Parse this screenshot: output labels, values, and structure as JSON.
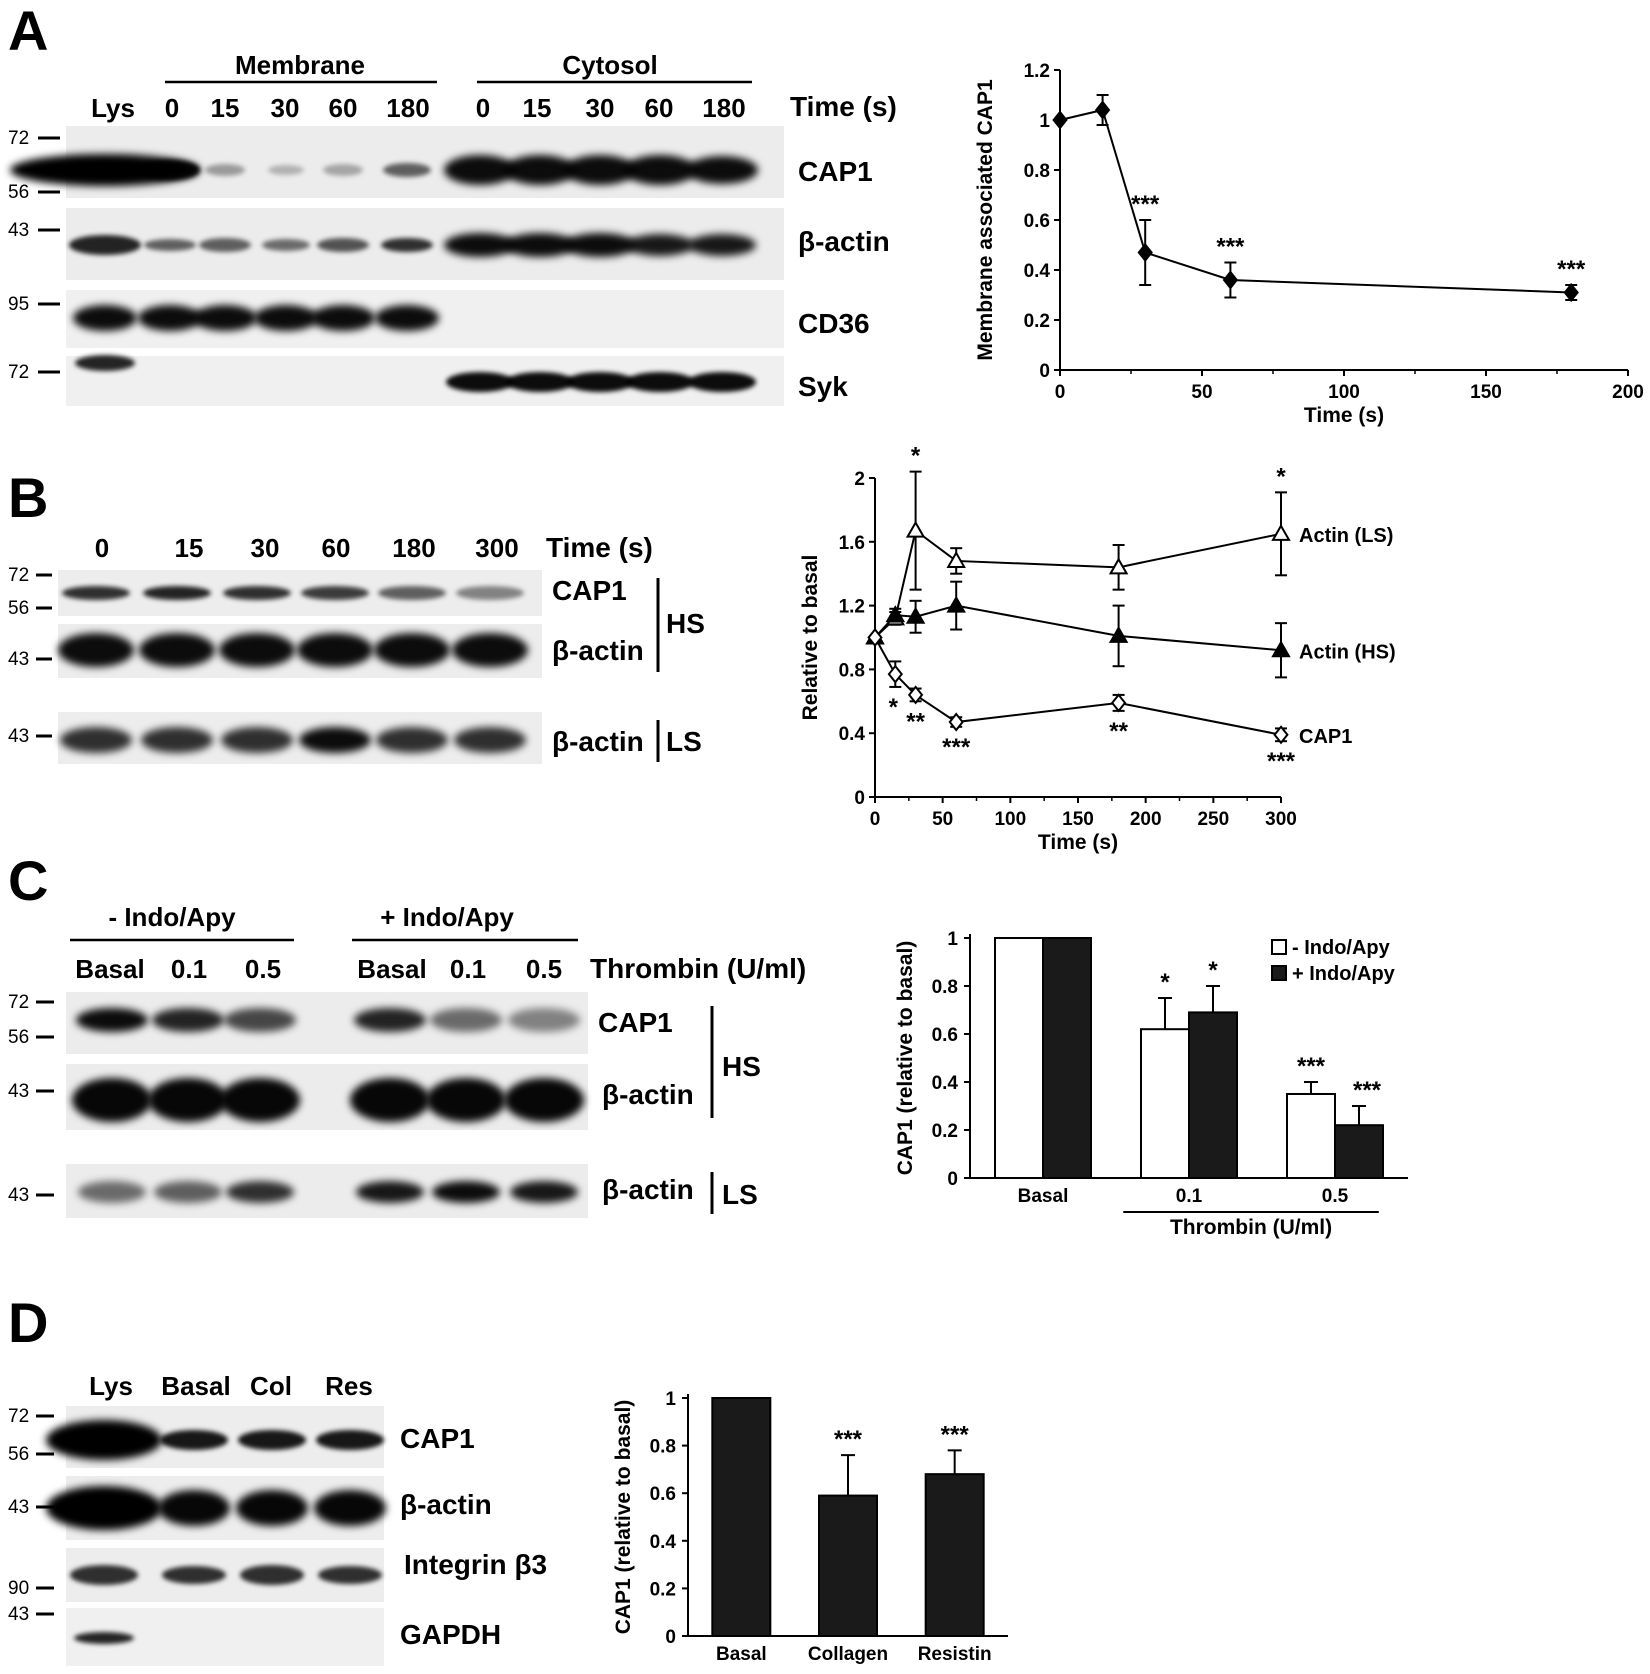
{
  "panels": {
    "A": {
      "label": "A",
      "groups": [
        "Membrane",
        "Cytosol"
      ],
      "lanes": [
        "Lys",
        "0",
        "15",
        "30",
        "60",
        "180",
        "0",
        "15",
        "30",
        "60",
        "180"
      ],
      "time_label": "Time (s)",
      "bands": [
        "CAP1",
        "β-actin",
        "CD36",
        "Syk"
      ],
      "mw": [
        "72",
        "56",
        "43",
        "95",
        "72"
      ]
    },
    "B": {
      "label": "B",
      "lanes": [
        "0",
        "15",
        "30",
        "60",
        "180",
        "300"
      ],
      "time_label": "Time (s)",
      "bands": [
        "CAP1",
        "β-actin",
        "β-actin"
      ],
      "fractions": [
        "HS",
        "LS"
      ],
      "mw": [
        "72",
        "56",
        "43",
        "43"
      ]
    },
    "C": {
      "label": "C",
      "groups": [
        "- Indo/Apy",
        "+ Indo/Apy"
      ],
      "lanes": [
        "Basal",
        "0.1",
        "0.5",
        "Basal",
        "0.1",
        "0.5"
      ],
      "treatment_label": "Thrombin (U/ml)",
      "bands": [
        "CAP1",
        "β-actin",
        "β-actin"
      ],
      "fractions": [
        "HS",
        "LS"
      ],
      "mw": [
        "72",
        "56",
        "43",
        "43"
      ]
    },
    "D": {
      "label": "D",
      "lanes": [
        "Lys",
        "Basal",
        "Col",
        "Res"
      ],
      "bands": [
        "CAP1",
        "β-actin",
        "Integrin β3",
        "GAPDH"
      ],
      "mw": [
        "72",
        "56",
        "43",
        "90",
        "43"
      ]
    }
  },
  "chart_data": [
    {
      "type": "line",
      "panel": "A",
      "xlabel": "Time (s)",
      "ylabel": "Membrane associated CAP1",
      "xlim": [
        0,
        200
      ],
      "ylim": [
        0,
        1.2
      ],
      "xticks": [
        "0",
        "50",
        "100",
        "150",
        "200"
      ],
      "yticks": [
        "0",
        "0.2",
        "0.4",
        "0.6",
        "0.8",
        "1",
        "1.2"
      ],
      "series": [
        {
          "x": [
            0,
            15,
            30,
            60,
            180
          ],
          "y": [
            1.0,
            1.04,
            0.47,
            0.36,
            0.31
          ],
          "err": [
            0,
            0.06,
            0.13,
            0.07,
            0.03
          ],
          "marker": "filled-diamond",
          "sig": [
            "",
            "",
            "***",
            "***",
            "***"
          ]
        }
      ]
    },
    {
      "type": "line",
      "panel": "B",
      "xlabel": "Time (s)",
      "ylabel": "Relative to basal",
      "xlim": [
        0,
        300
      ],
      "ylim": [
        0,
        2
      ],
      "xticks": [
        "0",
        "50",
        "100",
        "150",
        "200",
        "250",
        "300"
      ],
      "yticks": [
        "0",
        "0.4",
        "0.8",
        "1.2",
        "1.6",
        "2"
      ],
      "series": [
        {
          "name": "Actin (LS)",
          "x": [
            0,
            15,
            30,
            60,
            180,
            300
          ],
          "y": [
            1.0,
            1.12,
            1.67,
            1.48,
            1.44,
            1.65
          ],
          "err": [
            0,
            0.04,
            0.37,
            0.08,
            0.14,
            0.26
          ],
          "marker": "open-triangle",
          "sig": [
            "",
            "",
            "*",
            "",
            "",
            "*"
          ]
        },
        {
          "name": "Actin (HS)",
          "x": [
            0,
            15,
            30,
            60,
            180,
            300
          ],
          "y": [
            1.0,
            1.14,
            1.13,
            1.2,
            1.01,
            0.92
          ],
          "err": [
            0,
            0.04,
            0.1,
            0.15,
            0.19,
            0.17
          ],
          "marker": "filled-triangle",
          "sig": [
            "",
            "",
            "",
            "",
            "",
            ""
          ]
        },
        {
          "name": "CAP1",
          "x": [
            0,
            15,
            30,
            60,
            180,
            300
          ],
          "y": [
            1.0,
            0.77,
            0.64,
            0.47,
            0.59,
            0.39
          ],
          "err": [
            0,
            0.08,
            0.04,
            0.03,
            0.05,
            0.04
          ],
          "marker": "open-diamond",
          "sig": [
            "",
            "*",
            "**",
            "***",
            "**",
            "***"
          ]
        }
      ]
    },
    {
      "type": "bar",
      "panel": "C",
      "ylabel": "CAP1 (relative to basal)",
      "ylim": [
        0,
        1
      ],
      "yticks": [
        "0",
        "0.2",
        "0.4",
        "0.6",
        "0.8",
        "1"
      ],
      "categories": [
        "Basal",
        "0.1",
        "0.5"
      ],
      "group_label": "Thrombin (U/ml)",
      "series": [
        {
          "name": "- Indo/Apy",
          "values": [
            1.0,
            0.62,
            0.35
          ],
          "err": [
            0,
            0.13,
            0.05
          ],
          "fill": "#ffffff",
          "sig": [
            "",
            "*",
            "***"
          ]
        },
        {
          "name": "+ Indo/Apy",
          "values": [
            1.0,
            0.69,
            0.22
          ],
          "err": [
            0,
            0.11,
            0.08
          ],
          "fill": "#1a1a1a",
          "sig": [
            "",
            "*",
            "***"
          ]
        }
      ]
    },
    {
      "type": "bar",
      "panel": "D",
      "ylabel": "CAP1 (relative to basal)",
      "ylim": [
        0,
        1
      ],
      "yticks": [
        "0",
        "0.2",
        "0.4",
        "0.6",
        "0.8",
        "1"
      ],
      "categories": [
        "Basal",
        "Collagen",
        "Resistin"
      ],
      "series": [
        {
          "values": [
            1.0,
            0.59,
            0.68
          ],
          "err": [
            0,
            0.17,
            0.1
          ],
          "fill": "#1a1a1a",
          "sig": [
            "",
            "***",
            "***"
          ]
        }
      ]
    }
  ]
}
